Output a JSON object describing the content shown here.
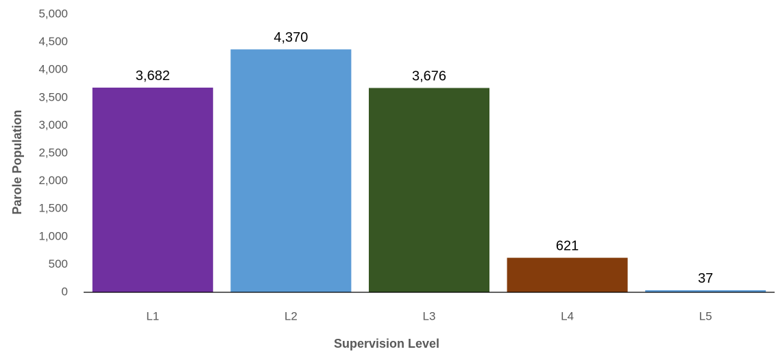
{
  "chart_data": {
    "type": "bar",
    "categories": [
      "L1",
      "L2",
      "L3",
      "L4",
      "L5"
    ],
    "values": [
      3682,
      4370,
      3676,
      621,
      37
    ],
    "data_labels": [
      "3,682",
      "4,370",
      "3,676",
      "621",
      "37"
    ],
    "bar_colors": [
      "#7030A0",
      "#5B9BD5",
      "#375623",
      "#843C0C",
      "#5B9BD5"
    ],
    "xlabel": "Supervision Level",
    "ylabel": "Parole Population",
    "ylim": [
      0,
      5000
    ],
    "yticks": [
      0,
      500,
      1000,
      1500,
      2000,
      2500,
      3000,
      3500,
      4000,
      4500,
      5000
    ],
    "ytick_labels": [
      "0",
      "500",
      "1,000",
      "1,500",
      "2,000",
      "2,500",
      "3,000",
      "3,500",
      "4,000",
      "4,500",
      "5,000"
    ],
    "grid": false,
    "legend": "none"
  }
}
